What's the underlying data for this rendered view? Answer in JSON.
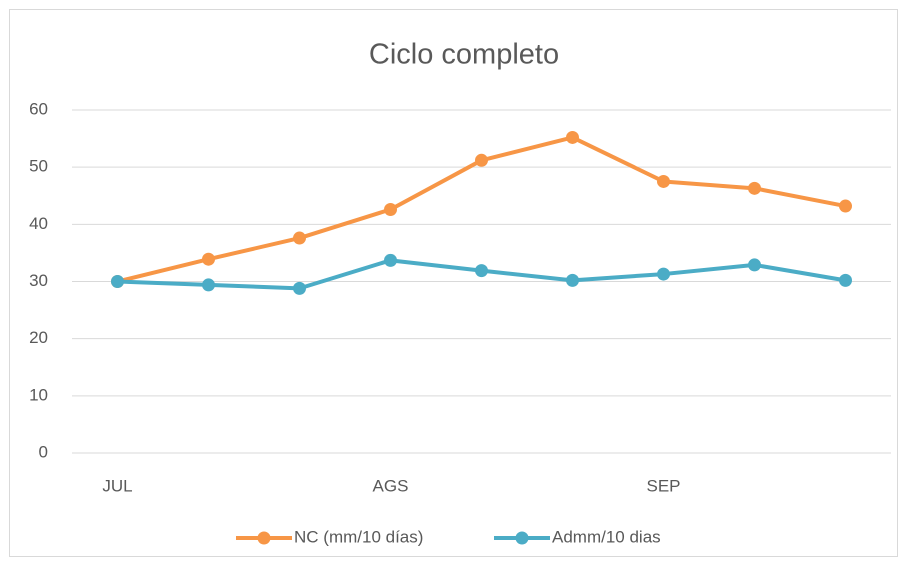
{
  "chart_data": {
    "type": "line",
    "title": "Ciclo completo",
    "categories": [
      "JUL",
      null,
      null,
      "AGS",
      null,
      null,
      "SEP",
      null,
      null
    ],
    "series": [
      {
        "name": "NC (mm/10 días)",
        "color": "#f79646",
        "values": [
          30,
          33.9,
          37.6,
          42.6,
          51.2,
          55.2,
          47.5,
          46.3,
          43.2
        ]
      },
      {
        "name": "Admm/10 dias",
        "color": "#4bacc6",
        "values": [
          30,
          29.4,
          28.8,
          33.7,
          31.9,
          30.2,
          31.3,
          32.9,
          30.2
        ]
      }
    ],
    "ylim": [
      0,
      60
    ],
    "yticks": [
      0,
      10,
      20,
      30,
      40,
      50,
      60
    ],
    "grid": true,
    "legend": "bottom"
  }
}
